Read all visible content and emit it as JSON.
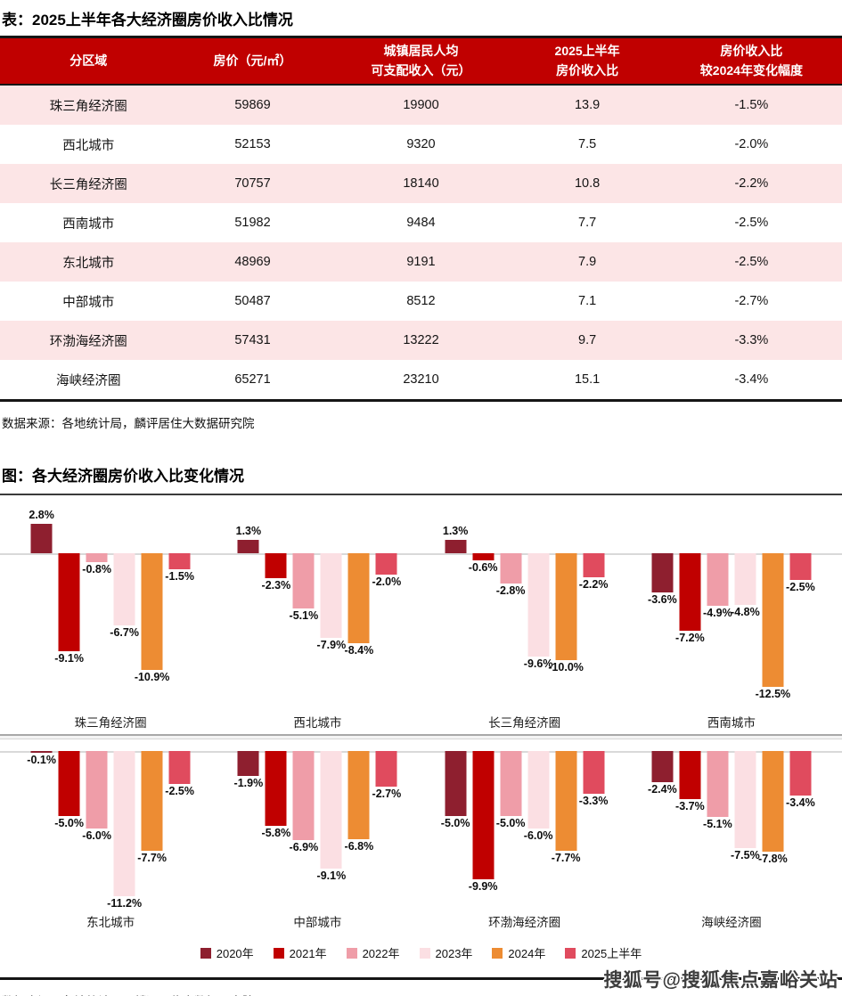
{
  "table_section": {
    "title": "表：2025上半年各大经济圈房价收入比情况",
    "columns": [
      "分区域",
      "房价（元/㎡）",
      "城镇居民人均\n可支配收入（元）",
      "2025上半年\n房价收入比",
      "房价收入比\n较2024年变化幅度"
    ],
    "rows": [
      [
        "珠三角经济圈",
        "59869",
        "19900",
        "13.9",
        "-1.5%"
      ],
      [
        "西北城市",
        "52153",
        "9320",
        "7.5",
        "-2.0%"
      ],
      [
        "长三角经济圈",
        "70757",
        "18140",
        "10.8",
        "-2.2%"
      ],
      [
        "西南城市",
        "51982",
        "9484",
        "7.7",
        "-2.5%"
      ],
      [
        "东北城市",
        "48969",
        "9191",
        "7.9",
        "-2.5%"
      ],
      [
        "中部城市",
        "50487",
        "8512",
        "7.1",
        "-2.7%"
      ],
      [
        "环渤海经济圈",
        "57431",
        "13222",
        "9.7",
        "-3.3%"
      ],
      [
        "海峡经济圈",
        "65271",
        "23210",
        "15.1",
        "-3.4%"
      ]
    ],
    "source": "数据来源：各地统计局，麟评居住大数据研究院",
    "header_bg": "#c00000",
    "stripe_bg": "#fce5e6"
  },
  "chart_section": {
    "title": "图：各大经济圈房价收入比变化情况",
    "source": "数据来源：各地统计局，麟评居住大数据研究院"
  },
  "chart_data": {
    "type": "bar",
    "title": "图：各大经济圈房价收入比变化情况",
    "unit": "%",
    "value_suffix": "%",
    "legend_position": "bottom",
    "grid": false,
    "series_names": [
      "2020年",
      "2021年",
      "2022年",
      "2023年",
      "2024年",
      "2025上半年"
    ],
    "series_colors": [
      "#8e1f2f",
      "#c00000",
      "#ef9da8",
      "#fbdfe3",
      "#ed8c33",
      "#e04b5e"
    ],
    "groups": [
      {
        "category": "珠三角经济圈",
        "values": [
          2.8,
          -9.1,
          -0.8,
          -6.7,
          -10.9,
          -1.5
        ]
      },
      {
        "category": "西北城市",
        "values": [
          1.3,
          -2.3,
          -5.1,
          -7.9,
          -8.4,
          -2.0
        ]
      },
      {
        "category": "长三角经济圈",
        "values": [
          1.3,
          -0.6,
          -2.8,
          -9.6,
          -10.0,
          -2.2
        ]
      },
      {
        "category": "西南城市",
        "values": [
          -3.6,
          -7.2,
          -4.9,
          -4.8,
          -12.5,
          -2.5
        ]
      },
      {
        "category": "东北城市",
        "values": [
          -0.1,
          -5.0,
          -6.0,
          -11.2,
          -7.7,
          -2.5
        ]
      },
      {
        "category": "中部城市",
        "values": [
          -1.9,
          -5.8,
          -6.9,
          -9.1,
          -6.8,
          -2.7
        ]
      },
      {
        "category": "环渤海经济圈",
        "values": [
          -5.0,
          -9.9,
          -5.0,
          -6.0,
          -7.7,
          -3.3
        ]
      },
      {
        "category": "海峡经济圈",
        "values": [
          -2.4,
          -3.7,
          -5.1,
          -7.5,
          -7.8,
          -3.4
        ]
      }
    ],
    "rows_layout": [
      [
        0,
        1,
        2,
        3
      ],
      [
        4,
        5,
        6,
        7
      ]
    ],
    "ylim_row1": [
      -12.5,
      2.8
    ],
    "ylim_row2": [
      -11.2,
      0
    ]
  },
  "watermark": "搜狐号@搜狐焦点嘉峪关站"
}
